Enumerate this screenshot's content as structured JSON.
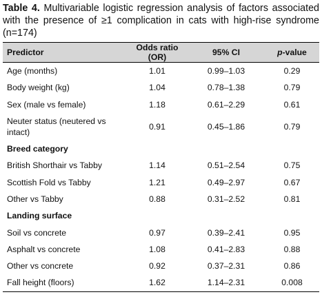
{
  "caption": {
    "label": "Table 4.",
    "text": "Multivariable logistic regression analysis of factors associated with the presence of ≥1 complication in cats with high-rise syndrome (n=174)"
  },
  "table": {
    "header": [
      "Predictor",
      "Odds ratio (OR)",
      "95% CI"
    ],
    "p_header": {
      "italic": "p",
      "text": "-value"
    },
    "rows": [
      [
        "Age (months)",
        "1.01",
        "0.99–1.03",
        "0.29"
      ],
      [
        "Body weight (kg)",
        "1.04",
        "0.78–1.38",
        "0.79"
      ],
      [
        "Sex (male vs female)",
        "1.18",
        "0.61–2.29",
        "0.61"
      ],
      [
        "Neuter status (neutered vs intact)",
        "0.91",
        "0.45–1.86",
        "0.79"
      ],
      {
        "group": "Breed category"
      },
      [
        "British Shorthair vs Tabby",
        "1.14",
        "0.51–2.54",
        "0.75"
      ],
      [
        "Scottish Fold vs Tabby",
        "1.21",
        "0.49–2.97",
        "0.67"
      ],
      [
        "Other vs Tabby",
        "0.88",
        "0.31–2.52",
        "0.81"
      ],
      {
        "group": "Landing surface"
      },
      [
        "Soil vs concrete",
        "0.97",
        "0.39–2.41",
        "0.95"
      ],
      [
        "Asphalt vs concrete",
        "1.08",
        "0.41–2.83",
        "0.88"
      ],
      [
        "Other vs concrete",
        "0.92",
        "0.37–2.31",
        "0.86"
      ],
      [
        "Fall height (floors)",
        "1.62",
        "1.14–2.31",
        "0.008"
      ]
    ]
  }
}
